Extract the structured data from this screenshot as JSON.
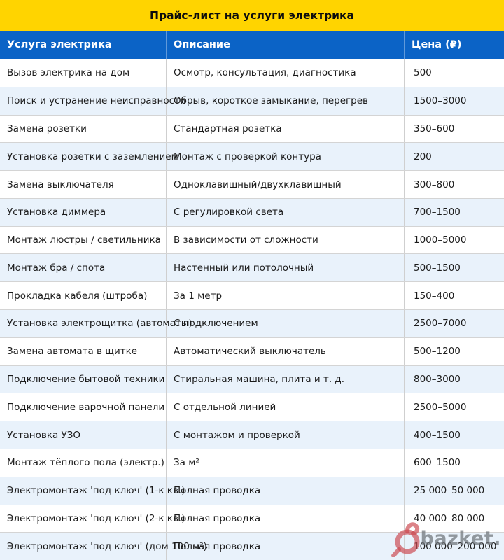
{
  "title": "Прайс-лист на услуги электрика",
  "table": {
    "headers": [
      "Услуга электрика",
      "Описание",
      "Цена (₽)"
    ],
    "rows": [
      [
        "Вызов электрика на дом",
        "Осмотр, консультация, диагностика",
        "500"
      ],
      [
        "Поиск и устранение неисправности",
        "Обрыв, короткое замыкание, перегрев",
        "1500–3000"
      ],
      [
        "Замена розетки",
        "Стандартная розетка",
        "350–600"
      ],
      [
        "Установка розетки с заземлением",
        "Монтаж с проверкой контура",
        "200"
      ],
      [
        "Замена выключателя",
        "Одноклавишный/двухклавишный",
        "300–800"
      ],
      [
        "Установка диммера",
        "С регулировкой света",
        "700–1500"
      ],
      [
        "Монтаж люстры / светильника",
        "В зависимости от сложности",
        "1000–5000"
      ],
      [
        "Монтаж бра / спота",
        "Настенный или потолочный",
        "500–1500"
      ],
      [
        "Прокладка кабеля (штроба)",
        "За 1 метр",
        "150–400"
      ],
      [
        "Установка электрощитка (автоматы)",
        "С подключением",
        "2500–7000"
      ],
      [
        "Замена автомата в щитке",
        "Автоматический выключатель",
        "500–1200"
      ],
      [
        "Подключение бытовой техники",
        "Стиральная машина, плита и т. д.",
        "800–3000"
      ],
      [
        "Подключение варочной панели",
        "С отдельной линией",
        "2500–5000"
      ],
      [
        "Установка УЗО",
        "С монтажом и проверкой",
        "400–1500"
      ],
      [
        "Монтаж тёплого пола (электр.)",
        "За м²",
        "600–1500"
      ],
      [
        "Электромонтаж 'под ключ' (1-к кв.)",
        "Полная проводка",
        "25 000–50 000"
      ],
      [
        "Электромонтаж 'под ключ' (2-к кв.)",
        "Полная проводка",
        "40 000–80 000"
      ],
      [
        "Электромонтаж 'под ключ' (дом 100 м²)",
        "Полная проводка",
        "100 000–200 000"
      ]
    ]
  },
  "watermark": {
    "text": "bazket."
  },
  "colors": {
    "title_bg": "#FFD400",
    "header_bg": "#0B63C6",
    "header_text": "#FFFFFF",
    "row_bg": "#FFFFFF",
    "row_alt_bg": "#E9F2FB",
    "body_text": "#1B1B1B",
    "border": "#D4D4D4",
    "watermark_red": "#CC4850",
    "watermark_gray": "#787D82"
  }
}
